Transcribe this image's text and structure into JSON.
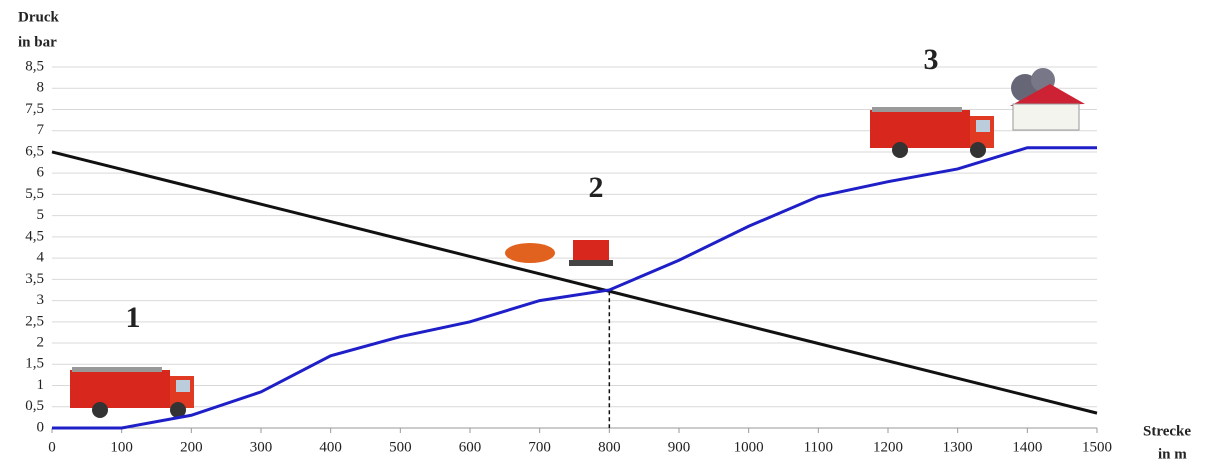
{
  "chart_data": {
    "type": "line",
    "y_label_lines": [
      "Druck",
      "in bar"
    ],
    "x_label_lines": [
      "Strecke",
      "in m"
    ],
    "x": [
      0,
      100,
      200,
      300,
      400,
      500,
      600,
      700,
      800,
      900,
      1000,
      1100,
      1200,
      1300,
      1400,
      1500
    ],
    "series": [
      {
        "color": "#111111",
        "values": [
          6.5,
          6.09,
          5.68,
          5.27,
          4.86,
          4.45,
          4.04,
          3.63,
          3.22,
          2.81,
          2.4,
          1.99,
          1.58,
          1.17,
          0.76,
          0.35
        ]
      },
      {
        "color": "#1f1fc8",
        "values": [
          0,
          0,
          0.3,
          0.85,
          1.7,
          2.15,
          2.5,
          3.0,
          3.25,
          3.95,
          4.75,
          5.45,
          5.8,
          6.1,
          6.6,
          6.6
        ]
      }
    ],
    "reference_x": 800,
    "annotations": [
      "1",
      "2",
      "3"
    ],
    "xlim": [
      0,
      1500
    ],
    "xticks": [
      0,
      100,
      200,
      300,
      400,
      500,
      600,
      700,
      800,
      900,
      1000,
      1100,
      1200,
      1300,
      1400,
      1500
    ],
    "ylim": [
      0,
      8.5
    ],
    "yticks": [
      0,
      {
        "value": 0.5,
        "label": "0,5"
      },
      1,
      {
        "value": 1.5,
        "label": "1,5"
      },
      2,
      {
        "value": 2.5,
        "label": "2,5"
      },
      3,
      {
        "value": 3.5,
        "label": "3,5"
      },
      4,
      {
        "value": 4.5,
        "label": "4,5"
      },
      5,
      {
        "value": 5.5,
        "label": "5,5"
      },
      6,
      {
        "value": 6.5,
        "label": "6,5"
      },
      7,
      {
        "value": 7.5,
        "label": "7,5"
      },
      8,
      {
        "value": 8.5,
        "label": "8,5"
      }
    ],
    "grid": true
  }
}
